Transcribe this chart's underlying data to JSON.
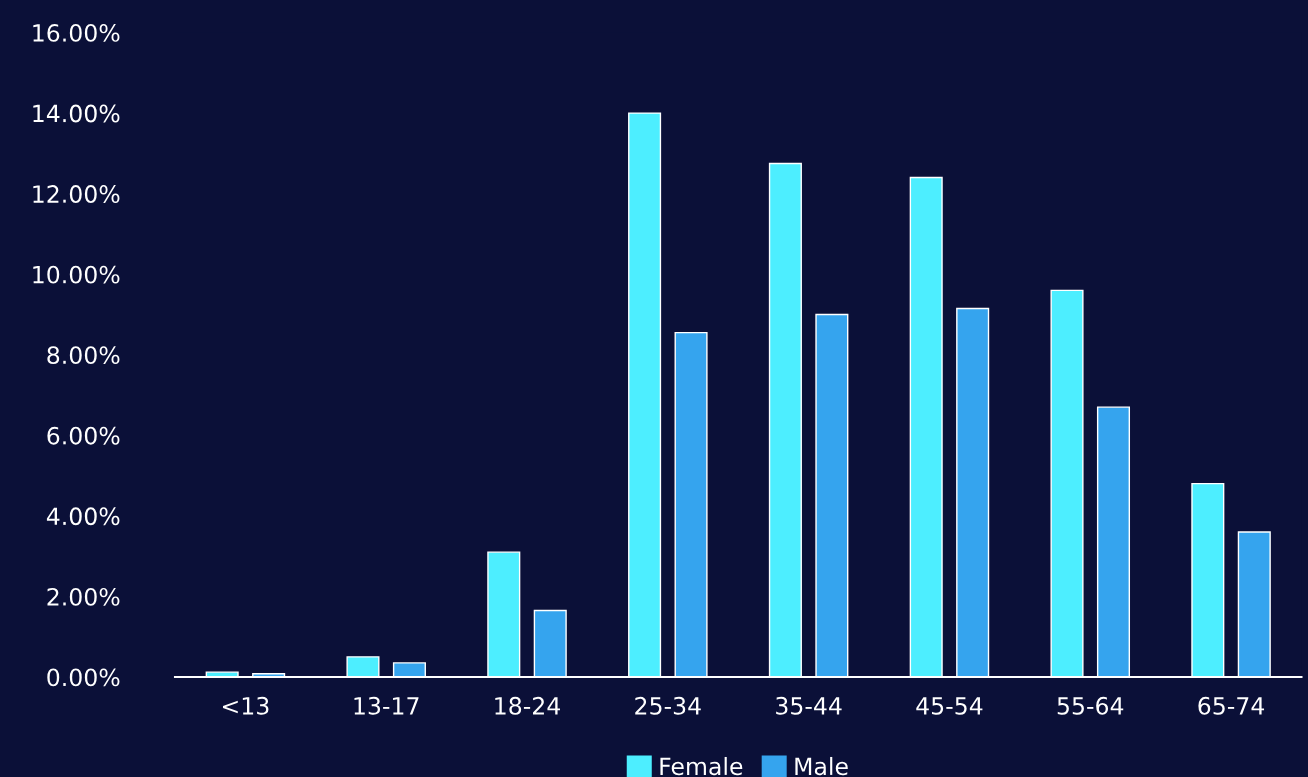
{
  "chart_data": {
    "type": "bar",
    "categories": [
      "<13",
      "13-17",
      "18-24",
      "25-34",
      "35-44",
      "45-54",
      "55-64",
      "65-74"
    ],
    "series": [
      {
        "name": "Female",
        "color": "#4deeff",
        "values": [
          0.12,
          0.5,
          3.1,
          14.0,
          12.75,
          12.4,
          9.6,
          4.8
        ]
      },
      {
        "name": "Male",
        "color": "#35a4ee",
        "values": [
          0.08,
          0.35,
          1.65,
          8.55,
          9.0,
          9.15,
          6.7,
          3.6
        ]
      }
    ],
    "ylim": [
      0,
      16
    ],
    "yticks": [
      {
        "value": 0,
        "label": "0.00%"
      },
      {
        "value": 2,
        "label": "2.00%"
      },
      {
        "value": 4,
        "label": "4.00%"
      },
      {
        "value": 6,
        "label": "6.00%"
      },
      {
        "value": 8,
        "label": "8.00%"
      },
      {
        "value": 10,
        "label": "10.00%"
      },
      {
        "value": 12,
        "label": "12.00%"
      },
      {
        "value": 14,
        "label": "14.00%"
      },
      {
        "value": 16,
        "label": "16.00%"
      }
    ],
    "grid": false,
    "legend": "bottom"
  }
}
